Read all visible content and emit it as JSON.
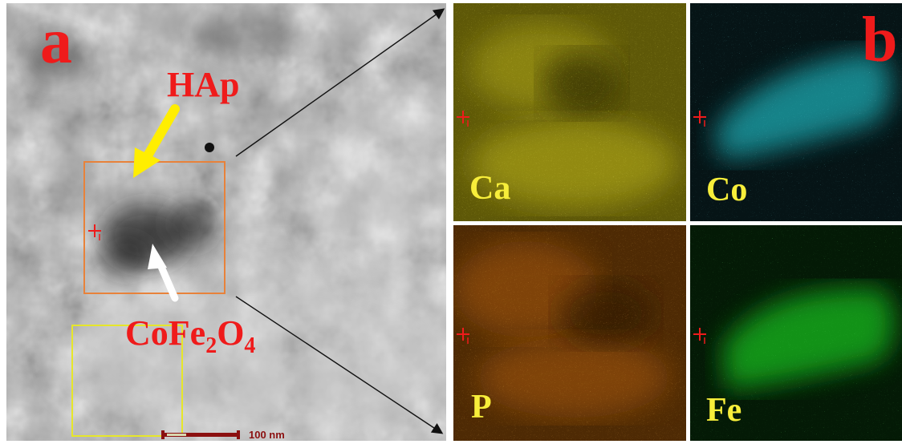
{
  "panel_a": {
    "letter": "a",
    "label_hap": "HAp",
    "label_cofe2o4": {
      "prefix": "CoFe",
      "sub1": "2",
      "mid": "O",
      "sub2": "4"
    },
    "scale_bar_label": "100 nm"
  },
  "panel_b": {
    "letter": "b",
    "tiles": [
      {
        "element": "Ca",
        "color": "#d8d020"
      },
      {
        "element": "Co",
        "color": "#28c8d0"
      },
      {
        "element": "P",
        "color": "#e07818"
      },
      {
        "element": "Fe",
        "color": "#22d028"
      }
    ]
  },
  "colors": {
    "label_red": "#ef1b1b",
    "element_label_yellow": "#f7ee3a",
    "roi_orange": "#e8823a",
    "roi_yellow": "#e6e62a",
    "hap_arrow": "#ffee00",
    "cofe2o4_arrow": "#ffffff"
  }
}
